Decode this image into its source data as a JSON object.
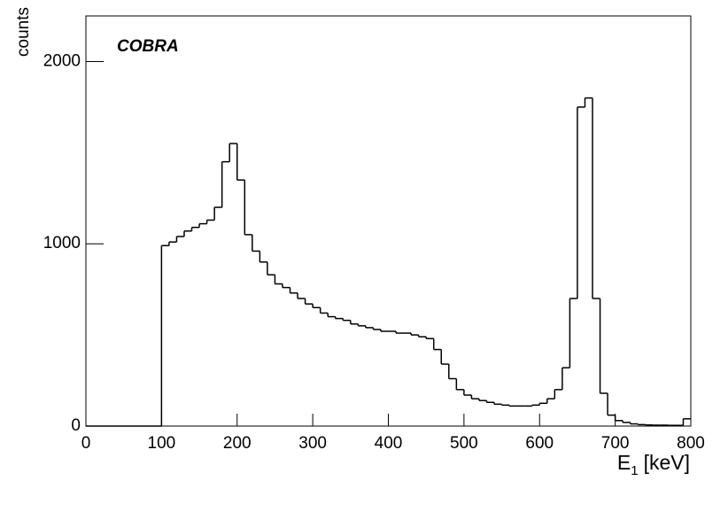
{
  "chart_data": {
    "type": "histogram",
    "label": "COBRA",
    "y_label": "counts",
    "x_label": {
      "symbol": "E",
      "subscript": "1",
      "unit": "[keV]"
    },
    "bins": [
      0,
      10,
      20,
      30,
      40,
      50,
      60,
      70,
      80,
      90,
      100,
      110,
      120,
      130,
      140,
      150,
      160,
      170,
      180,
      190,
      200,
      210,
      220,
      230,
      240,
      250,
      260,
      270,
      280,
      290,
      300,
      310,
      320,
      330,
      340,
      350,
      360,
      370,
      380,
      390,
      400,
      410,
      420,
      430,
      440,
      450,
      460,
      470,
      480,
      490,
      500,
      510,
      520,
      530,
      540,
      550,
      560,
      570,
      580,
      590,
      600,
      610,
      620,
      630,
      640,
      650,
      660,
      670,
      680,
      690,
      700,
      710,
      720,
      730,
      740,
      750,
      760,
      770,
      780,
      790,
      800
    ],
    "values": [
      0,
      0,
      0,
      0,
      0,
      0,
      0,
      0,
      0,
      0,
      990,
      1010,
      1040,
      1070,
      1090,
      1110,
      1130,
      1200,
      1450,
      1550,
      1350,
      1050,
      960,
      900,
      830,
      780,
      760,
      730,
      700,
      670,
      650,
      620,
      600,
      590,
      580,
      560,
      550,
      540,
      530,
      520,
      520,
      510,
      510,
      500,
      490,
      480,
      420,
      340,
      260,
      200,
      170,
      150,
      140,
      130,
      120,
      115,
      110,
      110,
      110,
      115,
      125,
      150,
      200,
      320,
      700,
      1750,
      1800,
      700,
      180,
      60,
      30,
      20,
      12,
      8,
      6,
      5,
      5,
      4,
      4,
      40
    ],
    "color": "#000000",
    "xlim": [
      0,
      800
    ],
    "xticks": [
      0,
      100,
      200,
      300,
      400,
      500,
      600,
      700,
      800
    ],
    "ylim": [
      0,
      2250
    ],
    "yticks": [
      0,
      1000,
      2000
    ]
  }
}
